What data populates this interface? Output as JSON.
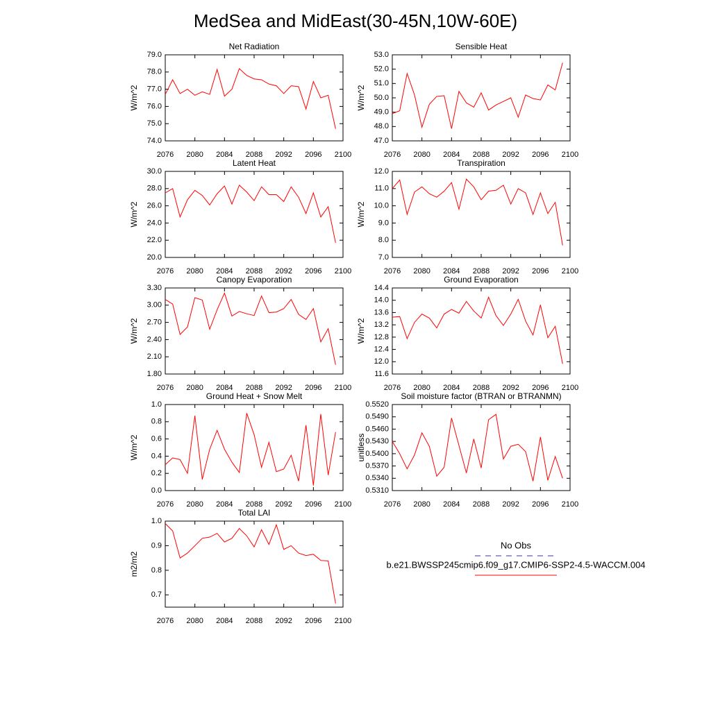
{
  "title": "MedSea and MidEast(30-45N,10W-60E)",
  "legend": [
    {
      "name": "No Obs",
      "color": "#3333aa",
      "dash": true
    },
    {
      "name": "b.e21.BWSSP245cmip6.f09_g17.CMIP6-SSP2-4.5-WACCM.004",
      "color": "#ff0000",
      "dash": false
    }
  ],
  "chart_data": [
    {
      "type": "line",
      "title": "Net Radiation",
      "ylabel": "W/m^2",
      "x": [
        2076,
        2077,
        2078,
        2079,
        2080,
        2081,
        2082,
        2083,
        2084,
        2085,
        2086,
        2087,
        2088,
        2089,
        2090,
        2091,
        2092,
        2093,
        2094,
        2095,
        2096,
        2097,
        2098,
        2099
      ],
      "series": [
        {
          "color": "#ff0000",
          "values": [
            76.7,
            77.55,
            76.75,
            77.0,
            76.65,
            76.85,
            76.7,
            78.15,
            76.6,
            77.0,
            78.2,
            77.8,
            77.6,
            77.55,
            77.3,
            77.2,
            76.75,
            77.2,
            77.15,
            75.85,
            77.45,
            76.5,
            76.65,
            74.7
          ]
        }
      ],
      "xlim": [
        2076,
        2100
      ],
      "xticks": [
        2076,
        2080,
        2084,
        2088,
        2092,
        2096,
        2100
      ],
      "ylim": [
        74,
        79
      ],
      "yticks": [
        {
          "value": 74,
          "label": "74.0"
        },
        {
          "value": 75,
          "label": "75.0"
        },
        {
          "value": 76,
          "label": "76.0"
        },
        {
          "value": 77,
          "label": "77.0"
        },
        {
          "value": 78,
          "label": "78.0"
        },
        {
          "value": 79,
          "label": "79.0"
        }
      ]
    },
    {
      "type": "line",
      "title": "Sensible Heat",
      "ylabel": "W/m^2",
      "x": [
        2076,
        2077,
        2078,
        2079,
        2080,
        2081,
        2082,
        2083,
        2084,
        2085,
        2086,
        2087,
        2088,
        2089,
        2090,
        2091,
        2092,
        2093,
        2094,
        2095,
        2096,
        2097,
        2098,
        2099
      ],
      "series": [
        {
          "color": "#ff0000",
          "values": [
            48.9,
            49.1,
            51.7,
            50.2,
            47.95,
            49.55,
            50.1,
            50.15,
            47.85,
            50.45,
            49.65,
            49.35,
            50.35,
            49.15,
            49.5,
            49.75,
            50.0,
            48.65,
            50.2,
            49.95,
            49.85,
            50.9,
            50.55,
            52.45
          ]
        }
      ],
      "xlim": [
        2076,
        2100
      ],
      "xticks": [
        2076,
        2080,
        2084,
        2088,
        2092,
        2096,
        2100
      ],
      "ylim": [
        47,
        53
      ],
      "yticks": [
        {
          "value": 47,
          "label": "47.0"
        },
        {
          "value": 48,
          "label": "48.0"
        },
        {
          "value": 49,
          "label": "49.0"
        },
        {
          "value": 50,
          "label": "50.0"
        },
        {
          "value": 51,
          "label": "51.0"
        },
        {
          "value": 52,
          "label": "52.0"
        },
        {
          "value": 53,
          "label": "53.0"
        }
      ]
    },
    {
      "type": "line",
      "title": "Latent Heat",
      "ylabel": "W/m^2",
      "x": [
        2076,
        2077,
        2078,
        2079,
        2080,
        2081,
        2082,
        2083,
        2084,
        2085,
        2086,
        2087,
        2088,
        2089,
        2090,
        2091,
        2092,
        2093,
        2094,
        2095,
        2096,
        2097,
        2098,
        2099
      ],
      "series": [
        {
          "color": "#ff0000",
          "values": [
            27.5,
            28.0,
            24.7,
            26.7,
            27.8,
            27.2,
            26.1,
            27.4,
            28.3,
            26.2,
            28.4,
            27.6,
            26.6,
            28.2,
            27.3,
            27.3,
            26.5,
            28.2,
            27.0,
            25.1,
            27.5,
            24.7,
            25.9,
            21.7
          ]
        }
      ],
      "xlim": [
        2076,
        2100
      ],
      "xticks": [
        2076,
        2080,
        2084,
        2088,
        2092,
        2096,
        2100
      ],
      "ylim": [
        20,
        30
      ],
      "yticks": [
        {
          "value": 20,
          "label": "20.0"
        },
        {
          "value": 22,
          "label": "22.0"
        },
        {
          "value": 24,
          "label": "24.0"
        },
        {
          "value": 26,
          "label": "26.0"
        },
        {
          "value": 28,
          "label": "28.0"
        },
        {
          "value": 30,
          "label": "30.0"
        }
      ]
    },
    {
      "type": "line",
      "title": "Transpiration",
      "ylabel": "W/m^2",
      "x": [
        2076,
        2077,
        2078,
        2079,
        2080,
        2081,
        2082,
        2083,
        2084,
        2085,
        2086,
        2087,
        2088,
        2089,
        2090,
        2091,
        2092,
        2093,
        2094,
        2095,
        2096,
        2097,
        2098,
        2099
      ],
      "series": [
        {
          "color": "#ff0000",
          "values": [
            11.0,
            11.5,
            9.5,
            10.8,
            11.1,
            10.7,
            10.5,
            10.85,
            11.35,
            9.8,
            11.55,
            11.1,
            10.35,
            10.85,
            10.9,
            11.2,
            10.1,
            11.0,
            10.75,
            9.5,
            10.75,
            9.55,
            10.2,
            7.7
          ]
        }
      ],
      "xlim": [
        2076,
        2100
      ],
      "xticks": [
        2076,
        2080,
        2084,
        2088,
        2092,
        2096,
        2100
      ],
      "ylim": [
        7,
        12
      ],
      "yticks": [
        {
          "value": 7,
          "label": "7.0"
        },
        {
          "value": 8,
          "label": "8.0"
        },
        {
          "value": 9,
          "label": "9.0"
        },
        {
          "value": 10,
          "label": "10.0"
        },
        {
          "value": 11,
          "label": "11.0"
        },
        {
          "value": 12,
          "label": "12.0"
        }
      ]
    },
    {
      "type": "line",
      "title": "Canopy Evaporation",
      "ylabel": "W/m^2",
      "x": [
        2076,
        2077,
        2078,
        2079,
        2080,
        2081,
        2082,
        2083,
        2084,
        2085,
        2086,
        2087,
        2088,
        2089,
        2090,
        2091,
        2092,
        2093,
        2094,
        2095,
        2096,
        2097,
        2098,
        2099
      ],
      "series": [
        {
          "color": "#ff0000",
          "values": [
            3.1,
            3.02,
            2.49,
            2.62,
            3.13,
            3.09,
            2.58,
            2.92,
            3.21,
            2.81,
            2.89,
            2.85,
            2.82,
            3.16,
            2.87,
            2.88,
            2.94,
            3.1,
            2.84,
            2.75,
            2.94,
            2.36,
            2.59,
            1.96
          ]
        }
      ],
      "xlim": [
        2076,
        2100
      ],
      "xticks": [
        2076,
        2080,
        2084,
        2088,
        2092,
        2096,
        2100
      ],
      "ylim": [
        1.8,
        3.3
      ],
      "yticks": [
        {
          "value": 1.8,
          "label": "1.80"
        },
        {
          "value": 2.1,
          "label": "2.10"
        },
        {
          "value": 2.4,
          "label": "2.40"
        },
        {
          "value": 2.7,
          "label": "2.70"
        },
        {
          "value": 3.0,
          "label": "3.00"
        },
        {
          "value": 3.3,
          "label": "3.30"
        }
      ]
    },
    {
      "type": "line",
      "title": "Ground Evaporation",
      "ylabel": "W/m^2",
      "x": [
        2076,
        2077,
        2078,
        2079,
        2080,
        2081,
        2082,
        2083,
        2084,
        2085,
        2086,
        2087,
        2088,
        2089,
        2090,
        2091,
        2092,
        2093,
        2094,
        2095,
        2096,
        2097,
        2098,
        2099
      ],
      "series": [
        {
          "color": "#ff0000",
          "values": [
            13.45,
            13.47,
            12.75,
            13.28,
            13.55,
            13.42,
            13.1,
            13.55,
            13.7,
            13.58,
            13.96,
            13.65,
            13.42,
            14.1,
            13.5,
            13.18,
            13.55,
            14.03,
            13.32,
            12.87,
            13.85,
            12.78,
            13.15,
            11.93
          ]
        }
      ],
      "xlim": [
        2076,
        2100
      ],
      "xticks": [
        2076,
        2080,
        2084,
        2088,
        2092,
        2096,
        2100
      ],
      "ylim": [
        11.6,
        14.4
      ],
      "yticks": [
        11.6,
        {
          "value": 12,
          "label": "12.0"
        },
        12.4,
        12.8,
        13.2,
        13.6,
        {
          "value": 14,
          "label": "14.0"
        },
        14.4
      ]
    },
    {
      "type": "line",
      "title": "Ground Heat + Snow Melt",
      "ylabel": "W/m^2",
      "x": [
        2076,
        2077,
        2078,
        2079,
        2080,
        2081,
        2082,
        2083,
        2084,
        2085,
        2086,
        2087,
        2088,
        2089,
        2090,
        2091,
        2092,
        2093,
        2094,
        2095,
        2096,
        2097,
        2098,
        2099
      ],
      "series": [
        {
          "color": "#ff0000",
          "values": [
            0.3,
            0.38,
            0.36,
            0.2,
            0.87,
            0.13,
            0.48,
            0.7,
            0.48,
            0.33,
            0.21,
            0.9,
            0.65,
            0.27,
            0.56,
            0.22,
            0.25,
            0.41,
            0.11,
            0.76,
            0.06,
            0.89,
            0.18,
            0.68
          ]
        }
      ],
      "xlim": [
        2076,
        2100
      ],
      "xticks": [
        2076,
        2080,
        2084,
        2088,
        2092,
        2096,
        2100
      ],
      "ylim": [
        0,
        1
      ],
      "yticks": [
        {
          "value": 0,
          "label": "0.0"
        },
        0.2,
        0.4,
        0.6,
        0.8,
        {
          "value": 1,
          "label": "1.0"
        }
      ]
    },
    {
      "type": "line",
      "title": "Soil moisture factor (BTRAN or BTRANMN)",
      "ylabel": "unitless",
      "x": [
        2076,
        2077,
        2078,
        2079,
        2080,
        2081,
        2082,
        2083,
        2084,
        2085,
        2086,
        2087,
        2088,
        2089,
        2090,
        2091,
        2092,
        2093,
        2094,
        2095,
        2096,
        2097,
        2098,
        2099
      ],
      "series": [
        {
          "color": "#ff0000",
          "values": [
            0.543,
            0.54,
            0.5363,
            0.5397,
            0.5451,
            0.5418,
            0.5345,
            0.5367,
            0.5487,
            0.542,
            0.5353,
            0.5436,
            0.5365,
            0.5483,
            0.5496,
            0.5387,
            0.5418,
            0.5423,
            0.5405,
            0.5333,
            0.5441,
            0.5335,
            0.5393,
            0.534
          ]
        }
      ],
      "xlim": [
        2076,
        2100
      ],
      "xticks": [
        2076,
        2080,
        2084,
        2088,
        2092,
        2096,
        2100
      ],
      "ylim": [
        0.531,
        0.552
      ],
      "yticks": [
        {
          "value": 0.531,
          "label": "0.5310"
        },
        {
          "value": 0.534,
          "label": "0.5340"
        },
        {
          "value": 0.537,
          "label": "0.5370"
        },
        {
          "value": 0.54,
          "label": "0.5400"
        },
        {
          "value": 0.543,
          "label": "0.5430"
        },
        {
          "value": 0.546,
          "label": "0.5460"
        },
        {
          "value": 0.549,
          "label": "0.5490"
        },
        {
          "value": 0.552,
          "label": "0.5520"
        }
      ]
    },
    {
      "type": "line",
      "title": "Total LAI",
      "ylabel": "m2/m2",
      "x": [
        2076,
        2077,
        2078,
        2079,
        2080,
        2081,
        2082,
        2083,
        2084,
        2085,
        2086,
        2087,
        2088,
        2089,
        2090,
        2091,
        2092,
        2093,
        2094,
        2095,
        2096,
        2097,
        2098,
        2099
      ],
      "series": [
        {
          "color": "#ff0000",
          "values": [
            0.99,
            0.96,
            0.85,
            0.87,
            0.9,
            0.93,
            0.935,
            0.95,
            0.915,
            0.93,
            0.97,
            0.94,
            0.895,
            0.965,
            0.905,
            0.985,
            0.885,
            0.9,
            0.87,
            0.86,
            0.865,
            0.84,
            0.838,
            0.665
          ]
        }
      ],
      "xlim": [
        2076,
        2100
      ],
      "xticks": [
        2076,
        2080,
        2084,
        2088,
        2092,
        2096,
        2100
      ],
      "ylim": [
        0.65,
        1.0
      ],
      "yticks": [
        0.7,
        0.8,
        0.9,
        {
          "value": 1,
          "label": "1.0"
        }
      ]
    }
  ]
}
